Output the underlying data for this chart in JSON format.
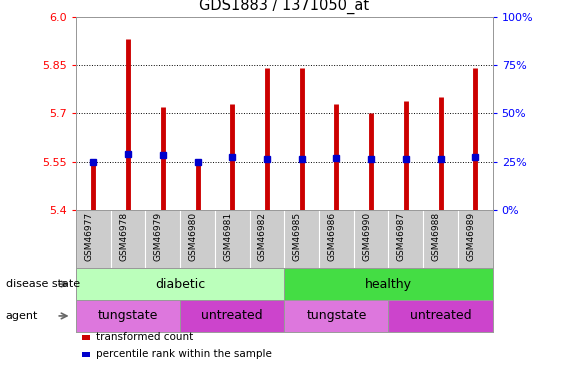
{
  "title": "GDS1883 / 1371050_at",
  "samples": [
    "GSM46977",
    "GSM46978",
    "GSM46979",
    "GSM46980",
    "GSM46981",
    "GSM46982",
    "GSM46985",
    "GSM46986",
    "GSM46990",
    "GSM46987",
    "GSM46988",
    "GSM46989"
  ],
  "bar_bottoms": [
    5.4,
    5.4,
    5.4,
    5.4,
    5.4,
    5.4,
    5.4,
    5.4,
    5.4,
    5.4,
    5.4,
    5.4
  ],
  "bar_tops": [
    5.55,
    5.93,
    5.72,
    5.55,
    5.73,
    5.84,
    5.84,
    5.73,
    5.7,
    5.74,
    5.75,
    5.84
  ],
  "percentile_values": [
    5.55,
    5.575,
    5.57,
    5.55,
    5.565,
    5.56,
    5.56,
    5.562,
    5.557,
    5.558,
    5.558,
    5.565
  ],
  "ylim": [
    5.4,
    6.0
  ],
  "yticks": [
    5.4,
    5.55,
    5.7,
    5.85,
    6.0
  ],
  "right_yticks": [
    0,
    25,
    50,
    75,
    100
  ],
  "right_ytick_labels": [
    "0%",
    "25%",
    "50%",
    "75%",
    "100%"
  ],
  "bar_color": "#cc0000",
  "percentile_color": "#0000cc",
  "disease_state_diabetic_color": "#bbffbb",
  "disease_state_healthy_color": "#44dd44",
  "agent_tungstate_color": "#dd77dd",
  "agent_untreated_color": "#cc44cc",
  "disease_state_groups": [
    {
      "label": "diabetic",
      "start": 0,
      "end": 6
    },
    {
      "label": "healthy",
      "start": 6,
      "end": 12
    }
  ],
  "agent_groups": [
    {
      "label": "tungstate",
      "start": 0,
      "end": 3
    },
    {
      "label": "untreated",
      "start": 3,
      "end": 6
    },
    {
      "label": "tungstate",
      "start": 6,
      "end": 9
    },
    {
      "label": "untreated",
      "start": 9,
      "end": 12
    }
  ],
  "legend_items": [
    {
      "label": "transformed count",
      "color": "#cc0000"
    },
    {
      "label": "percentile rank within the sample",
      "color": "#0000cc"
    }
  ]
}
